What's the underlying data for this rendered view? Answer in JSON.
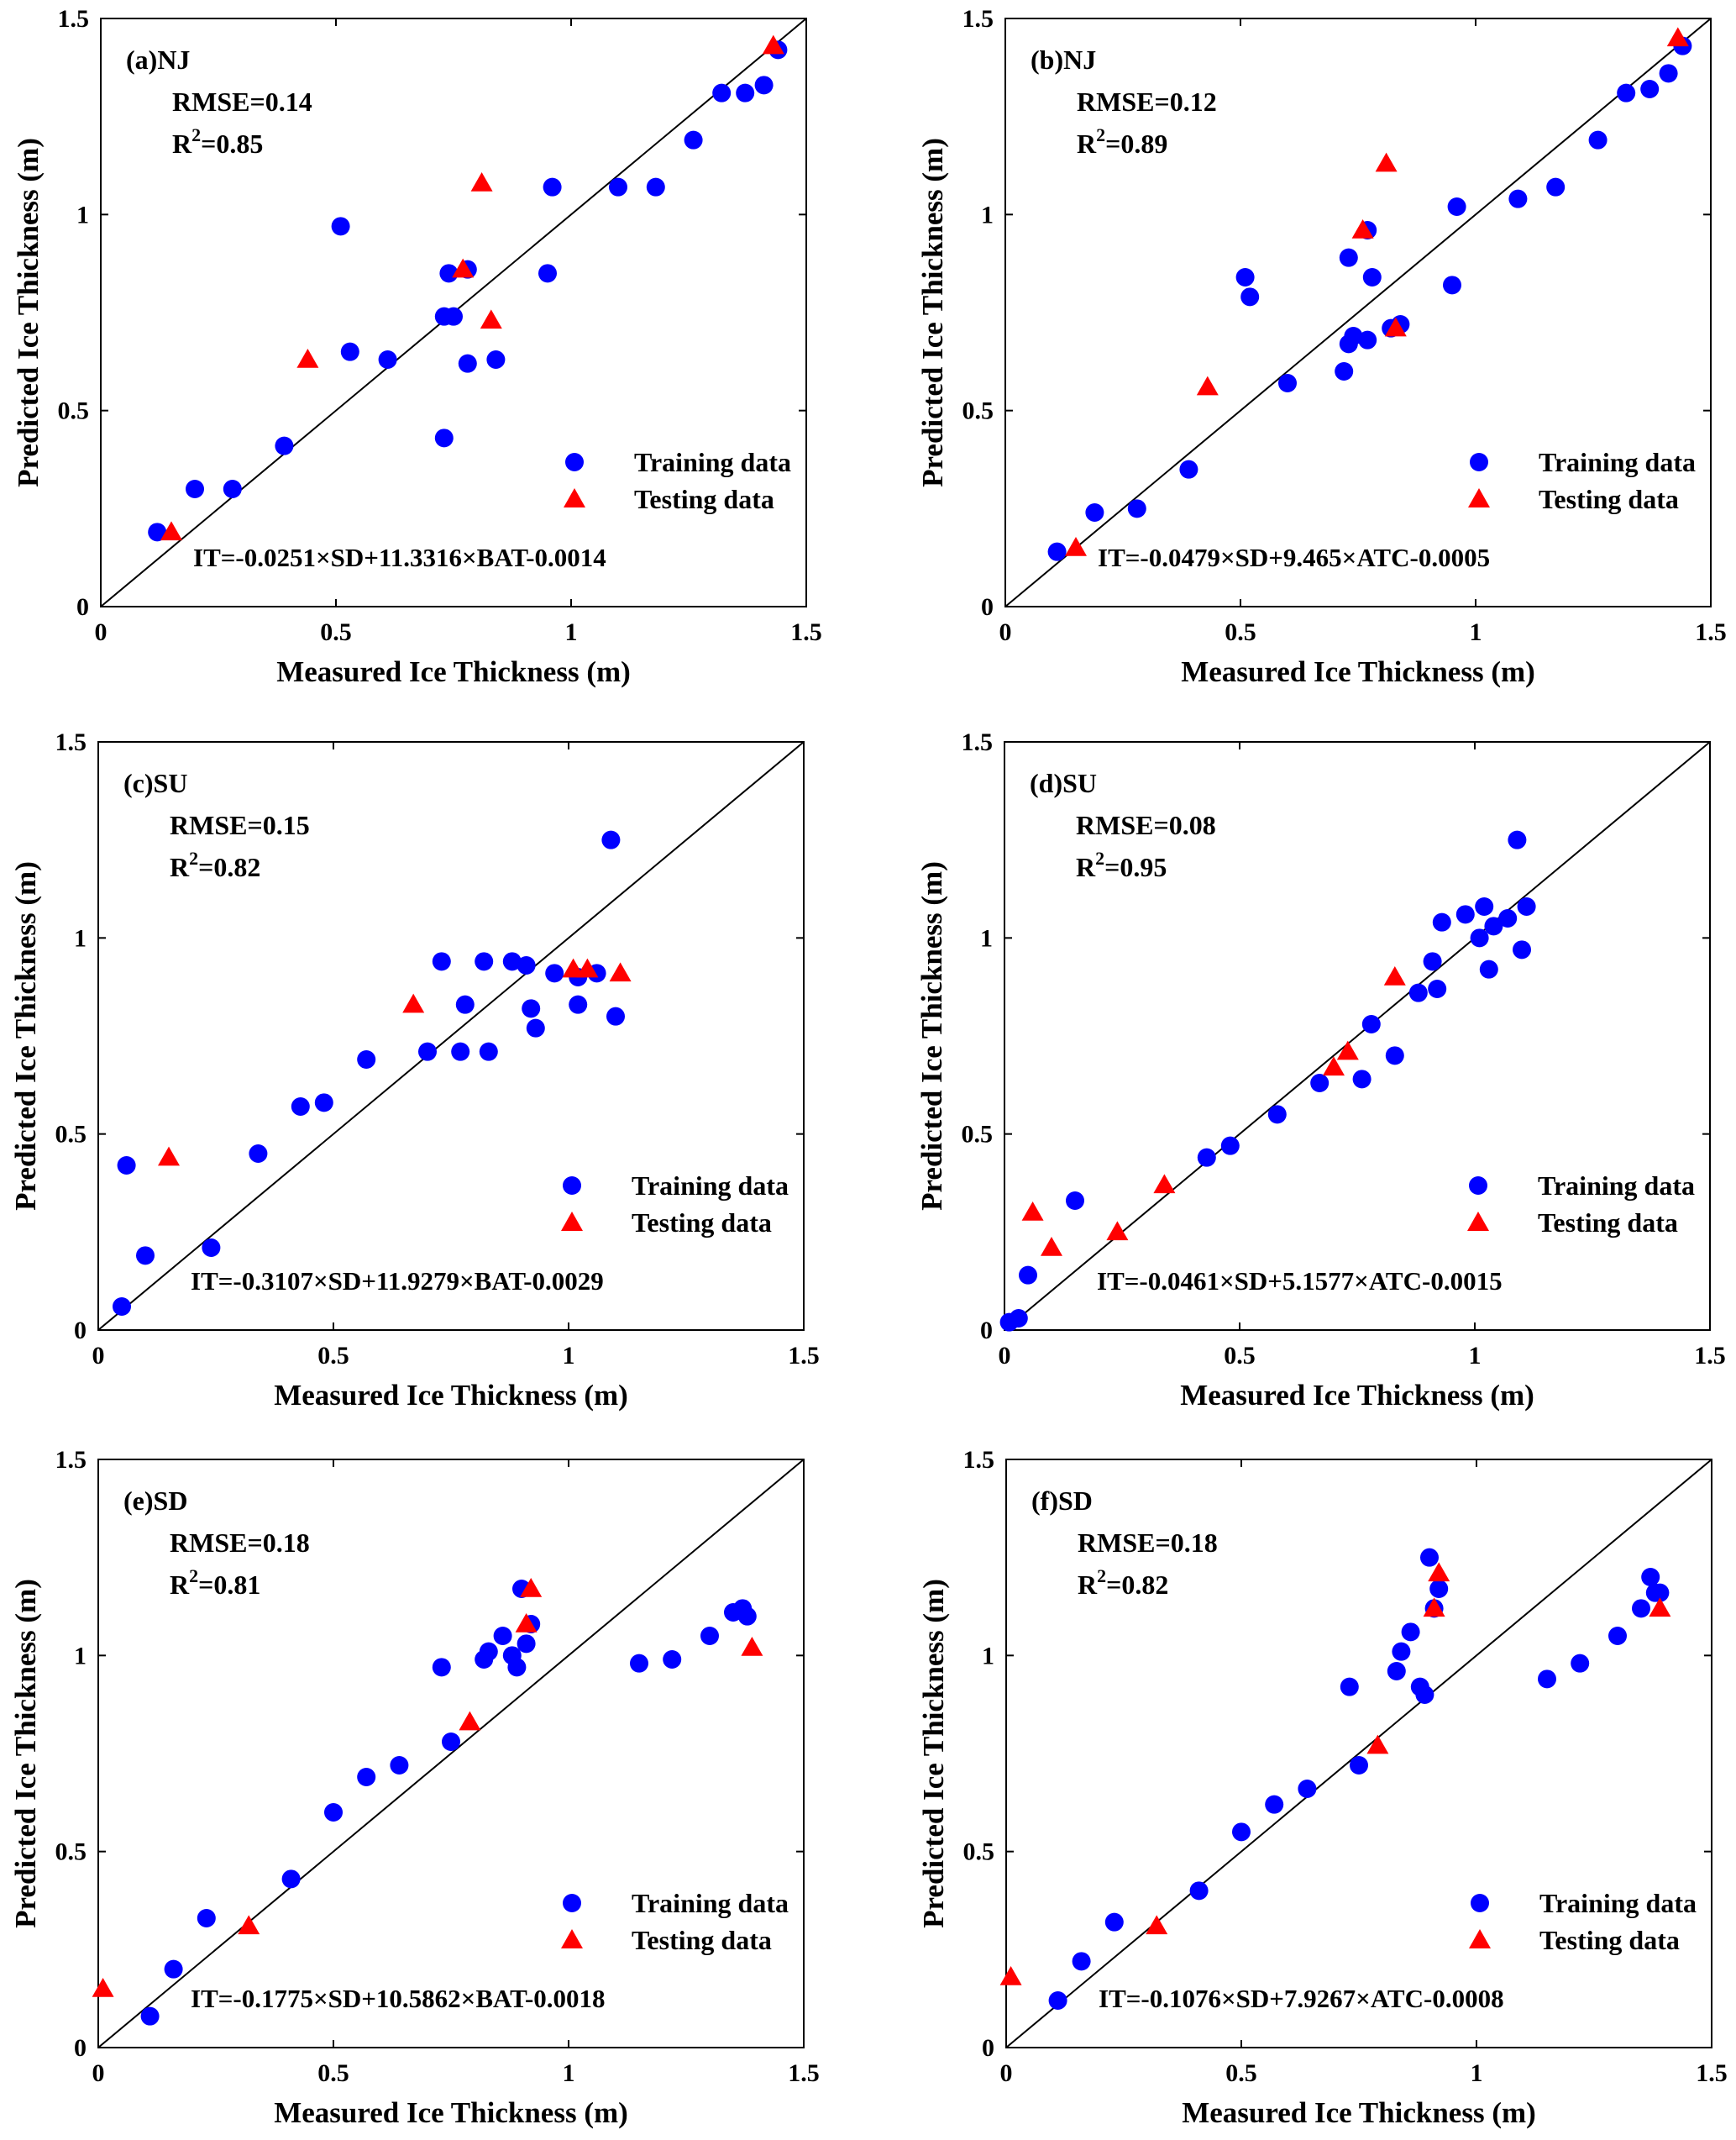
{
  "figure": {
    "legend_training": "Training data",
    "legend_testing": "Testing data",
    "xlabel": "Measured Ice Thickness (m)",
    "ylabel": "Predicted Ice Thickness (m)",
    "colors": {
      "training": "#0000ff",
      "testing": "#ff0000",
      "axis": "#000000",
      "background": "#ffffff"
    }
  },
  "chart_data": [
    {
      "type": "scatter",
      "panel_label": "(a)NJ",
      "rmse": "RMSE=0.14",
      "r2_prefix": "R",
      "r2_exp": "2",
      "r2_value": "=0.85",
      "equation": "IT=-0.0251×SD+11.3316×BAT-0.0014",
      "xlabel": "Measured Ice Thickness (m)",
      "ylabel": "Predicted Ice Thickness (m)",
      "xlim": [
        0,
        1.5
      ],
      "ylim": [
        0,
        1.5
      ],
      "x_ticks": [
        0,
        0.5,
        1,
        1.5
      ],
      "y_ticks": [
        0,
        0.5,
        1,
        1.5
      ],
      "x_tick_labels": [
        "0",
        "0.5",
        "1",
        "1.5"
      ],
      "y_tick_labels": [
        "0",
        "0.5",
        "1",
        "1.5"
      ],
      "reference_line": "1:1",
      "legend_position": "bottom-right",
      "series": [
        {
          "name": "Training data",
          "marker": "circle",
          "color": "#0000ff",
          "points": [
            [
              0.12,
              0.19
            ],
            [
              0.2,
              0.3
            ],
            [
              0.28,
              0.3
            ],
            [
              0.39,
              0.41
            ],
            [
              0.51,
              0.97
            ],
            [
              0.53,
              0.65
            ],
            [
              0.61,
              0.63
            ],
            [
              0.73,
              0.43
            ],
            [
              0.73,
              0.74
            ],
            [
              0.74,
              0.85
            ],
            [
              0.75,
              0.74
            ],
            [
              0.78,
              0.86
            ],
            [
              0.78,
              0.62
            ],
            [
              0.84,
              0.63
            ],
            [
              0.95,
              0.85
            ],
            [
              0.96,
              1.07
            ],
            [
              1.1,
              1.07
            ],
            [
              1.18,
              1.07
            ],
            [
              1.26,
              1.19
            ],
            [
              1.32,
              1.31
            ],
            [
              1.37,
              1.31
            ],
            [
              1.41,
              1.33
            ],
            [
              1.44,
              1.42
            ]
          ]
        },
        {
          "name": "Testing data",
          "marker": "triangle",
          "color": "#ff0000",
          "points": [
            [
              0.15,
              0.19
            ],
            [
              0.44,
              0.63
            ],
            [
              0.77,
              0.86
            ],
            [
              0.81,
              1.08
            ],
            [
              0.83,
              0.73
            ],
            [
              1.43,
              1.43
            ]
          ]
        }
      ]
    },
    {
      "type": "scatter",
      "panel_label": "(b)NJ",
      "rmse": "RMSE=0.12",
      "r2_prefix": "R",
      "r2_exp": "2",
      "r2_value": "=0.89",
      "equation": "IT=-0.0479×SD+9.465×ATC-0.0005",
      "xlabel": "Measured Ice Thickness (m)",
      "ylabel": "Predicted Ice Thickness (m)",
      "xlim": [
        0,
        1.5
      ],
      "ylim": [
        0,
        1.5
      ],
      "x_ticks": [
        0,
        0.5,
        1,
        1.5
      ],
      "y_ticks": [
        0,
        0.5,
        1,
        1.5
      ],
      "x_tick_labels": [
        "0",
        "0.5",
        "1",
        "1.5"
      ],
      "y_tick_labels": [
        "0",
        "0.5",
        "1",
        "1.5"
      ],
      "reference_line": "1:1",
      "legend_position": "bottom-right",
      "series": [
        {
          "name": "Training data",
          "marker": "circle",
          "color": "#0000ff",
          "points": [
            [
              0.11,
              0.14
            ],
            [
              0.19,
              0.24
            ],
            [
              0.28,
              0.25
            ],
            [
              0.39,
              0.35
            ],
            [
              0.51,
              0.84
            ],
            [
              0.52,
              0.79
            ],
            [
              0.6,
              0.57
            ],
            [
              0.72,
              0.6
            ],
            [
              0.73,
              0.67
            ],
            [
              0.73,
              0.89
            ],
            [
              0.74,
              0.69
            ],
            [
              0.77,
              0.68
            ],
            [
              0.77,
              0.96
            ],
            [
              0.78,
              0.84
            ],
            [
              0.82,
              0.71
            ],
            [
              0.84,
              0.72
            ],
            [
              0.95,
              0.82
            ],
            [
              0.96,
              1.02
            ],
            [
              1.09,
              1.04
            ],
            [
              1.17,
              1.07
            ],
            [
              1.26,
              1.19
            ],
            [
              1.32,
              1.31
            ],
            [
              1.37,
              1.32
            ],
            [
              1.41,
              1.36
            ],
            [
              1.44,
              1.43
            ]
          ]
        },
        {
          "name": "Testing data",
          "marker": "triangle",
          "color": "#ff0000",
          "points": [
            [
              0.15,
              0.15
            ],
            [
              0.43,
              0.56
            ],
            [
              0.76,
              0.96
            ],
            [
              0.81,
              1.13
            ],
            [
              0.83,
              0.71
            ],
            [
              1.43,
              1.45
            ]
          ]
        }
      ]
    },
    {
      "type": "scatter",
      "panel_label": "(c)SU",
      "rmse": "RMSE=0.15",
      "r2_prefix": "R",
      "r2_exp": "2",
      "r2_value": "=0.82",
      "equation": "IT=-0.3107×SD+11.9279×BAT-0.0029",
      "xlabel": "Measured Ice Thickness (m)",
      "ylabel": "Predicted Ice Thickness (m)",
      "xlim": [
        0,
        1.5
      ],
      "ylim": [
        0,
        1.5
      ],
      "x_ticks": [
        0,
        0.5,
        1,
        1.5
      ],
      "y_ticks": [
        0,
        0.5,
        1,
        1.5
      ],
      "x_tick_labels": [
        "0",
        "0.5",
        "1",
        "1.5"
      ],
      "y_tick_labels": [
        "0",
        "0.5",
        "1",
        "1.5"
      ],
      "reference_line": "1:1",
      "legend_position": "bottom-right",
      "series": [
        {
          "name": "Training data",
          "marker": "circle",
          "color": "#0000ff",
          "points": [
            [
              0.05,
              0.06
            ],
            [
              0.06,
              0.42
            ],
            [
              0.1,
              0.19
            ],
            [
              0.24,
              0.21
            ],
            [
              0.34,
              0.45
            ],
            [
              0.43,
              0.57
            ],
            [
              0.48,
              0.58
            ],
            [
              0.57,
              0.69
            ],
            [
              0.7,
              0.71
            ],
            [
              0.73,
              0.94
            ],
            [
              0.77,
              0.71
            ],
            [
              0.78,
              0.83
            ],
            [
              0.82,
              0.94
            ],
            [
              0.83,
              0.71
            ],
            [
              0.88,
              0.94
            ],
            [
              0.91,
              0.93
            ],
            [
              0.92,
              0.82
            ],
            [
              0.93,
              0.77
            ],
            [
              0.97,
              0.91
            ],
            [
              1.02,
              0.9
            ],
            [
              1.02,
              0.83
            ],
            [
              1.06,
              0.91
            ],
            [
              1.09,
              1.25
            ],
            [
              1.1,
              0.8
            ]
          ]
        },
        {
          "name": "Testing data",
          "marker": "triangle",
          "color": "#ff0000",
          "points": [
            [
              0.15,
              0.44
            ],
            [
              0.67,
              0.83
            ],
            [
              1.01,
              0.92
            ],
            [
              1.04,
              0.92
            ],
            [
              1.11,
              0.91
            ]
          ]
        }
      ]
    },
    {
      "type": "scatter",
      "panel_label": "(d)SU",
      "rmse": "RMSE=0.08",
      "r2_prefix": "R",
      "r2_exp": "2",
      "r2_value": "=0.95",
      "equation": "IT=-0.0461×SD+5.1577×ATC-0.0015",
      "xlabel": "Measured Ice Thickness (m)",
      "ylabel": "Predicted Ice Thickness (m)",
      "xlim": [
        0,
        1.5
      ],
      "ylim": [
        0,
        1.5
      ],
      "x_ticks": [
        0,
        0.5,
        1,
        1.5
      ],
      "y_ticks": [
        0,
        0.5,
        1,
        1.5
      ],
      "x_tick_labels": [
        "0",
        "0.5",
        "1",
        "1.5"
      ],
      "y_tick_labels": [
        "0",
        "0.5",
        "1",
        "1.5"
      ],
      "reference_line": "1:1",
      "legend_position": "bottom-right",
      "series": [
        {
          "name": "Training data",
          "marker": "circle",
          "color": "#0000ff",
          "points": [
            [
              0.01,
              0.02
            ],
            [
              0.03,
              0.03
            ],
            [
              0.05,
              0.14
            ],
            [
              0.15,
              0.33
            ],
            [
              0.43,
              0.44
            ],
            [
              0.48,
              0.47
            ],
            [
              0.58,
              0.55
            ],
            [
              0.67,
              0.63
            ],
            [
              0.76,
              0.64
            ],
            [
              0.78,
              0.78
            ],
            [
              0.83,
              0.7
            ],
            [
              0.88,
              0.86
            ],
            [
              0.91,
              0.94
            ],
            [
              0.92,
              0.87
            ],
            [
              0.93,
              1.04
            ],
            [
              0.98,
              1.06
            ],
            [
              1.01,
              1.0
            ],
            [
              1.02,
              1.08
            ],
            [
              1.03,
              0.92
            ],
            [
              1.04,
              1.03
            ],
            [
              1.07,
              1.05
            ],
            [
              1.09,
              1.25
            ],
            [
              1.1,
              0.97
            ],
            [
              1.11,
              1.08
            ]
          ]
        },
        {
          "name": "Testing data",
          "marker": "triangle",
          "color": "#ff0000",
          "points": [
            [
              0.06,
              0.3
            ],
            [
              0.1,
              0.21
            ],
            [
              0.24,
              0.25
            ],
            [
              0.34,
              0.37
            ],
            [
              0.7,
              0.67
            ],
            [
              0.73,
              0.71
            ],
            [
              0.83,
              0.9
            ]
          ]
        }
      ]
    },
    {
      "type": "scatter",
      "panel_label": "(e)SD",
      "rmse": "RMSE=0.18",
      "r2_prefix": "R",
      "r2_exp": "2",
      "r2_value": "=0.81",
      "equation": "IT=-0.1775×SD+10.5862×BAT-0.0018",
      "xlabel": "Measured Ice Thickness (m)",
      "ylabel": "Predicted Ice Thickness (m)",
      "xlim": [
        0,
        1.5
      ],
      "ylim": [
        0,
        1.5
      ],
      "x_ticks": [
        0,
        0.5,
        1,
        1.5
      ],
      "y_ticks": [
        0,
        0.5,
        1,
        1.5
      ],
      "x_tick_labels": [
        "0",
        "0.5",
        "1",
        "1.5"
      ],
      "y_tick_labels": [
        "0",
        "0.5",
        "1",
        "1.5"
      ],
      "reference_line": "1:1",
      "legend_position": "bottom-right",
      "series": [
        {
          "name": "Training data",
          "marker": "circle",
          "color": "#0000ff",
          "points": [
            [
              0.11,
              0.08
            ],
            [
              0.16,
              0.2
            ],
            [
              0.23,
              0.33
            ],
            [
              0.41,
              0.43
            ],
            [
              0.5,
              0.6
            ],
            [
              0.57,
              0.69
            ],
            [
              0.64,
              0.72
            ],
            [
              0.73,
              0.97
            ],
            [
              0.75,
              0.78
            ],
            [
              0.82,
              0.99
            ],
            [
              0.83,
              1.01
            ],
            [
              0.86,
              1.05
            ],
            [
              0.88,
              1.0
            ],
            [
              0.89,
              0.97
            ],
            [
              0.9,
              1.17
            ],
            [
              0.91,
              1.03
            ],
            [
              0.92,
              1.08
            ],
            [
              1.15,
              0.98
            ],
            [
              1.22,
              0.99
            ],
            [
              1.3,
              1.05
            ],
            [
              1.35,
              1.11
            ],
            [
              1.37,
              1.12
            ],
            [
              1.38,
              1.1
            ]
          ]
        },
        {
          "name": "Testing data",
          "marker": "triangle",
          "color": "#ff0000",
          "points": [
            [
              0.01,
              0.15
            ],
            [
              0.32,
              0.31
            ],
            [
              0.79,
              0.83
            ],
            [
              0.91,
              1.08
            ],
            [
              0.92,
              1.17
            ],
            [
              1.39,
              1.02
            ]
          ]
        }
      ]
    },
    {
      "type": "scatter",
      "panel_label": "(f)SD",
      "rmse": "RMSE=0.18",
      "r2_prefix": "R",
      "r2_exp": "2",
      "r2_value": "=0.82",
      "equation": "IT=-0.1076×SD+7.9267×ATC-0.0008",
      "xlabel": "Measured Ice Thickness (m)",
      "ylabel": "Predicted Ice Thickness (m)",
      "xlim": [
        0,
        1.5
      ],
      "ylim": [
        0,
        1.5
      ],
      "x_ticks": [
        0,
        0.5,
        1,
        1.5
      ],
      "y_ticks": [
        0,
        0.5,
        1,
        1.5
      ],
      "x_tick_labels": [
        "0",
        "0.5",
        "1",
        "1.5"
      ],
      "y_tick_labels": [
        "0",
        "0.5",
        "1",
        "1.5"
      ],
      "reference_line": "1:1",
      "legend_position": "bottom-right",
      "series": [
        {
          "name": "Training data",
          "marker": "circle",
          "color": "#0000ff",
          "points": [
            [
              0.11,
              0.12
            ],
            [
              0.16,
              0.22
            ],
            [
              0.23,
              0.32
            ],
            [
              0.41,
              0.4
            ],
            [
              0.5,
              0.55
            ],
            [
              0.57,
              0.62
            ],
            [
              0.64,
              0.66
            ],
            [
              0.73,
              0.92
            ],
            [
              0.75,
              0.72
            ],
            [
              0.83,
              0.96
            ],
            [
              0.84,
              1.01
            ],
            [
              0.86,
              1.06
            ],
            [
              0.88,
              0.92
            ],
            [
              0.89,
              0.9
            ],
            [
              0.9,
              1.25
            ],
            [
              0.91,
              1.12
            ],
            [
              0.92,
              1.17
            ],
            [
              1.15,
              0.94
            ],
            [
              1.22,
              0.98
            ],
            [
              1.3,
              1.05
            ],
            [
              1.35,
              1.12
            ],
            [
              1.37,
              1.2
            ],
            [
              1.38,
              1.16
            ],
            [
              1.39,
              1.16
            ]
          ]
        },
        {
          "name": "Testing data",
          "marker": "triangle",
          "color": "#ff0000",
          "points": [
            [
              0.01,
              0.18
            ],
            [
              0.32,
              0.31
            ],
            [
              0.79,
              0.77
            ],
            [
              0.91,
              1.12
            ],
            [
              0.92,
              1.21
            ],
            [
              1.39,
              1.12
            ]
          ]
        }
      ]
    }
  ]
}
